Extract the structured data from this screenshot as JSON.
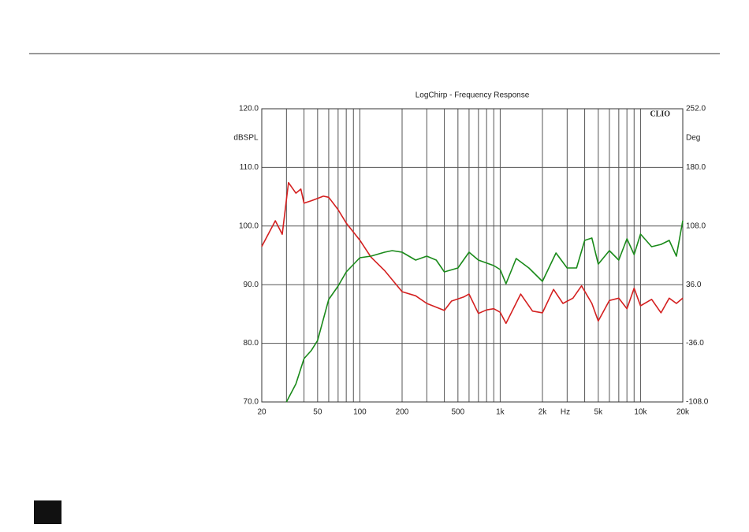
{
  "chart_data": {
    "type": "line",
    "title": "LogChirp - Frequency Response",
    "ylabel": "dBSPL",
    "y2label": "Deg",
    "xlabel": "Hz",
    "badge": "CLIO",
    "xlog": true,
    "grid": true,
    "xlim": [
      20,
      20000
    ],
    "xticks": [
      {
        "value": 20,
        "label": "20"
      },
      {
        "value": 50,
        "label": "50"
      },
      {
        "value": 100,
        "label": "100"
      },
      {
        "value": 200,
        "label": "200"
      },
      {
        "value": 500,
        "label": "500"
      },
      {
        "value": 1000,
        "label": "1k"
      },
      {
        "value": 2000,
        "label": "2k"
      },
      {
        "value": 5000,
        "label": "5k"
      },
      {
        "value": 10000,
        "label": "10k"
      },
      {
        "value": 20000,
        "label": "20k"
      }
    ],
    "xminor": [
      30,
      40,
      60,
      70,
      80,
      90,
      300,
      400,
      600,
      700,
      800,
      900,
      3000,
      4000,
      6000,
      7000,
      8000,
      9000
    ],
    "ylim": [
      70,
      120
    ],
    "yticks": [
      {
        "value": 70,
        "label": "70.0"
      },
      {
        "value": 80,
        "label": "80.0"
      },
      {
        "value": 90,
        "label": "90.0"
      },
      {
        "value": 100,
        "label": "100.0"
      },
      {
        "value": 110,
        "label": "110.0"
      },
      {
        "value": 120,
        "label": "120.0"
      }
    ],
    "y2lim": [
      -108,
      252
    ],
    "y2ticks": [
      {
        "value": -108,
        "label": "-108.0"
      },
      {
        "value": -36,
        "label": "-36.0"
      },
      {
        "value": 36,
        "label": "36.0"
      },
      {
        "value": 108,
        "label": "108.0"
      },
      {
        "value": 180,
        "label": "180.0"
      },
      {
        "value": 252,
        "label": "252.0"
      }
    ],
    "series": [
      {
        "color": "#d42020",
        "x": [
          20,
          25,
          28,
          31,
          35,
          38,
          40,
          45,
          50,
          55,
          60,
          70,
          80,
          100,
          120,
          150,
          200,
          250,
          300,
          400,
          450,
          550,
          600,
          700,
          800,
          900,
          1000,
          1100,
          1400,
          1700,
          2000,
          2400,
          2800,
          3300,
          3800,
          4500,
          5000,
          6000,
          7000,
          8000,
          9000,
          10000,
          12000,
          14000,
          16000,
          18000,
          20000
        ],
        "values": [
          96.5,
          100.9,
          98.6,
          107.4,
          105.6,
          106.3,
          103.9,
          104.3,
          104.7,
          105.1,
          104.9,
          102.8,
          100.5,
          97.6,
          94.7,
          92.4,
          88.8,
          88.1,
          86.8,
          85.6,
          87.2,
          87.9,
          88.4,
          85.1,
          85.7,
          85.9,
          85.3,
          83.4,
          88.4,
          85.5,
          85.2,
          89.2,
          86.8,
          87.7,
          89.8,
          86.8,
          83.8,
          87.3,
          87.7,
          85.9,
          89.4,
          86.4,
          87.5,
          85.2,
          87.7,
          86.8,
          87.7
        ]
      },
      {
        "color": "#1a8a1a",
        "axis": "y2",
        "x": [
          30,
          35,
          40,
          45,
          50,
          60,
          70,
          80,
          100,
          120,
          150,
          170,
          200,
          250,
          300,
          350,
          400,
          500,
          600,
          700,
          900,
          1000,
          1100,
          1300,
          1600,
          2000,
          2500,
          3000,
          3500,
          4000,
          4500,
          5000,
          6000,
          7000,
          8000,
          9000,
          10000,
          12000,
          14000,
          16000,
          18000,
          20000
        ],
        "values": [
          -108,
          -85.8,
          -54.8,
          -45,
          -32.5,
          17.8,
          34.3,
          51.7,
          69.1,
          71,
          75.9,
          77.8,
          75.9,
          66.2,
          71,
          66.2,
          51.7,
          56.5,
          75.9,
          66.2,
          59.4,
          54.6,
          37.2,
          68.1,
          56.5,
          40.1,
          74.9,
          56.5,
          56.5,
          90.4,
          93.3,
          61.3,
          77.8,
          66.2,
          92.3,
          73,
          98.1,
          82.6,
          85.5,
          90.4,
          71,
          114.6
        ]
      }
    ]
  }
}
